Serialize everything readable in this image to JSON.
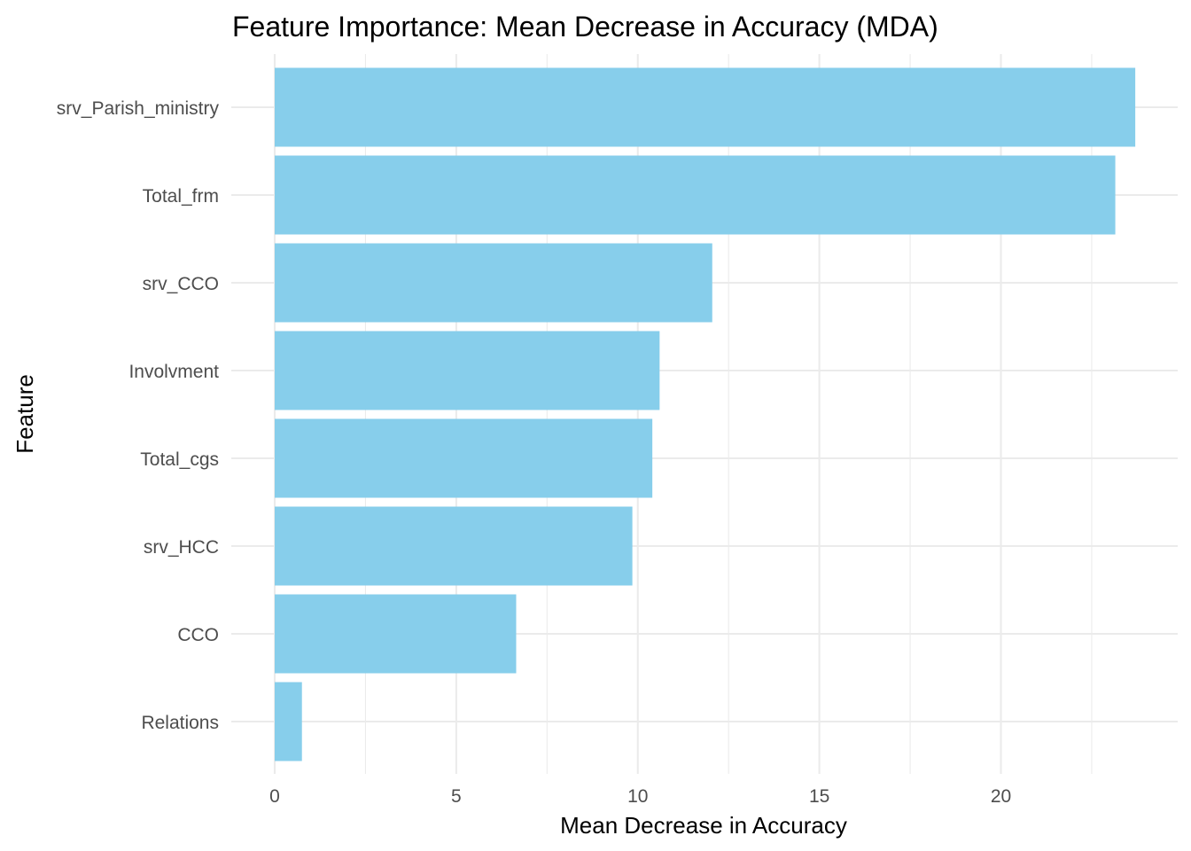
{
  "chart_data": {
    "type": "bar",
    "orientation": "horizontal",
    "title": "Feature Importance: Mean Decrease in Accuracy (MDA)",
    "xlabel": "Mean Decrease in Accuracy",
    "ylabel": "Feature",
    "categories": [
      "srv_Parish_ministry",
      "Total_frm",
      "srv_CCO",
      "Involvment",
      "Total_cgs",
      "srv_HCC",
      "CCO",
      "Relations"
    ],
    "values": [
      23.7,
      23.15,
      12.05,
      10.6,
      10.4,
      9.85,
      6.65,
      0.75
    ],
    "xlim": [
      0,
      24.5
    ],
    "xticks": [
      0,
      5,
      10,
      15,
      20
    ],
    "grid": true,
    "bar_color": "#87CEEB",
    "grid_color": "#ebebeb"
  }
}
